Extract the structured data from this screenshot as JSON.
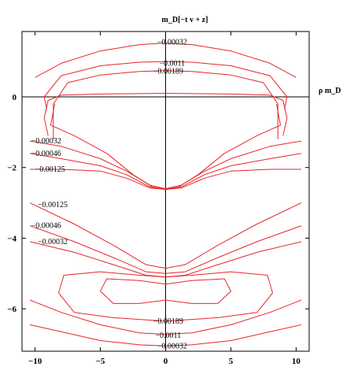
{
  "chart_data": {
    "type": "contour",
    "title": "m_D[−t v + z]",
    "xlabel": "ρ m_D",
    "ylabel": "",
    "xlim": [
      -11,
      11
    ],
    "ylim": [
      -7.2,
      1.85
    ],
    "x_ticks": [
      -10,
      -5,
      0,
      5,
      10
    ],
    "x_tick_labels": [
      "−10",
      "−5",
      "0",
      "5",
      "10"
    ],
    "y_ticks": [
      0,
      -2,
      -4,
      -6
    ],
    "y_tick_labels": [
      "0",
      "−2",
      "−4",
      "−6"
    ],
    "grid": false,
    "line_color": "#e8252a",
    "reference_lines": [
      {
        "axis": "y",
        "value": 0
      },
      {
        "axis": "x",
        "value": 0
      }
    ],
    "contour_labels": [
      {
        "text": "−0.00032",
        "x": 0.5,
        "y": 1.55
      },
      {
        "text": "−0.0011",
        "x": 0.5,
        "y": 0.95
      },
      {
        "text": "−0.00189",
        "x": 0.2,
        "y": 0.72
      },
      {
        "text": "−0.00032",
        "x": -10.3,
        "y": -1.25
      },
      {
        "text": "−0.00046",
        "x": -10.3,
        "y": -1.6
      },
      {
        "text": "−0.00125",
        "x": -10.0,
        "y": -2.05
      },
      {
        "text": "−0.00125",
        "x": -9.8,
        "y": -3.05
      },
      {
        "text": "−0.00046",
        "x": -10.3,
        "y": -3.65
      },
      {
        "text": "−0.00032",
        "x": -9.8,
        "y": -4.1
      },
      {
        "text": "−0.00189",
        "x": 0.2,
        "y": -6.35
      },
      {
        "text": "−0.0011",
        "x": 0.2,
        "y": -6.75
      },
      {
        "text": "−0.00032",
        "x": 0.5,
        "y": -7.05
      }
    ],
    "contours": [
      {
        "level": "−0.00032 (top)",
        "points": [
          [
            -10,
            0.55
          ],
          [
            -8,
            0.95
          ],
          [
            -5,
            1.3
          ],
          [
            -2,
            1.48
          ],
          [
            0,
            1.52
          ],
          [
            2,
            1.48
          ],
          [
            5,
            1.3
          ],
          [
            8,
            0.95
          ],
          [
            10,
            0.55
          ]
        ]
      },
      {
        "level": "−0.0011 (top)",
        "points": [
          [
            -9.1,
            -0.35
          ],
          [
            -9.3,
            0
          ],
          [
            -8,
            0.6
          ],
          [
            -5,
            0.88
          ],
          [
            -2,
            0.98
          ],
          [
            0,
            1.0
          ],
          [
            2,
            0.98
          ],
          [
            5,
            0.88
          ],
          [
            8,
            0.6
          ],
          [
            9.3,
            0
          ],
          [
            9.1,
            -0.35
          ]
        ]
      },
      {
        "level": "−0.00189 (upper loop)",
        "points": [
          [
            -8.6,
            -1.2
          ],
          [
            -8.6,
            -0.2
          ],
          [
            -7.5,
            0.4
          ],
          [
            -5,
            0.62
          ],
          [
            -2,
            0.72
          ],
          [
            0,
            0.74
          ],
          [
            2,
            0.72
          ],
          [
            5,
            0.62
          ],
          [
            7.5,
            0.4
          ],
          [
            8.6,
            -0.2
          ],
          [
            8.6,
            -1.2
          ]
        ]
      },
      {
        "level": "upper region inner loop",
        "points": [
          [
            -9,
            -1.1
          ],
          [
            -9.3,
            -0.6
          ],
          [
            -9,
            -0.1
          ],
          [
            -8,
            0.05
          ],
          [
            -5,
            0.08
          ],
          [
            0,
            0.1
          ],
          [
            5,
            0.08
          ],
          [
            8,
            0.05
          ],
          [
            9,
            -0.1
          ],
          [
            9.3,
            -0.6
          ],
          [
            9,
            -1.1
          ]
        ]
      },
      {
        "level": "lobe",
        "points": [
          [
            -8.5,
            -0.2
          ],
          [
            -8.8,
            -0.8
          ],
          [
            -7,
            -1.1
          ],
          [
            -4.5,
            -1.6
          ],
          [
            -2.5,
            -2.2
          ],
          [
            -1,
            -2.55
          ],
          [
            0,
            -2.62
          ],
          [
            1,
            -2.55
          ],
          [
            2.5,
            -2.2
          ],
          [
            4.5,
            -1.6
          ],
          [
            7,
            -1.1
          ],
          [
            8.8,
            -0.8
          ],
          [
            8.5,
            -0.2
          ]
        ]
      },
      {
        "level": "−0.00032 (left lobe branch)",
        "points": [
          [
            -10.4,
            -1.25
          ],
          [
            -8,
            -1.4
          ],
          [
            -5,
            -1.75
          ],
          [
            -3,
            -2.1
          ],
          [
            -1.2,
            -2.5
          ],
          [
            0,
            -2.6
          ],
          [
            1.2,
            -2.5
          ],
          [
            3,
            -2.1
          ],
          [
            5,
            -1.75
          ],
          [
            8,
            -1.4
          ],
          [
            10.4,
            -1.25
          ]
        ]
      },
      {
        "level": "−0.00046 (lobe branch)",
        "points": [
          [
            -10.4,
            -1.6
          ],
          [
            -8,
            -1.75
          ],
          [
            -5,
            -1.95
          ],
          [
            -3,
            -2.2
          ],
          [
            -1.2,
            -2.55
          ],
          [
            0,
            -2.62
          ],
          [
            1.2,
            -2.55
          ],
          [
            3,
            -2.2
          ],
          [
            5,
            -1.95
          ],
          [
            8,
            -1.75
          ],
          [
            10.4,
            -1.6
          ]
        ]
      },
      {
        "level": "−0.00125 (lobe branch)",
        "points": [
          [
            -10.4,
            -2.05
          ],
          [
            -8,
            -2.05
          ],
          [
            -5,
            -2.1
          ],
          [
            -3,
            -2.3
          ],
          [
            -1.2,
            -2.58
          ],
          [
            0,
            -2.62
          ],
          [
            1.2,
            -2.58
          ],
          [
            3,
            -2.3
          ],
          [
            5,
            -2.1
          ],
          [
            8,
            -2.05
          ],
          [
            10.4,
            -2.05
          ]
        ]
      },
      {
        "level": "−0.00125 (lower)",
        "points": [
          [
            -10.4,
            -3.0
          ],
          [
            -7,
            -3.6
          ],
          [
            -4,
            -4.2
          ],
          [
            -1.5,
            -4.75
          ],
          [
            0,
            -4.85
          ],
          [
            1.5,
            -4.75
          ],
          [
            4,
            -4.2
          ],
          [
            7,
            -3.6
          ],
          [
            10.4,
            -3.0
          ]
        ]
      },
      {
        "level": "−0.00046 (lower)",
        "points": [
          [
            -10.4,
            -3.65
          ],
          [
            -7,
            -4.1
          ],
          [
            -4,
            -4.55
          ],
          [
            -1.5,
            -4.95
          ],
          [
            0,
            -5.0
          ],
          [
            1.5,
            -4.95
          ],
          [
            4,
            -4.55
          ],
          [
            7,
            -4.1
          ],
          [
            10.4,
            -3.65
          ]
        ]
      },
      {
        "level": "−0.00032 (lower)",
        "points": [
          [
            -10.4,
            -4.1
          ],
          [
            -7,
            -4.4
          ],
          [
            -4,
            -4.75
          ],
          [
            -1.5,
            -5.05
          ],
          [
            0,
            -5.1
          ],
          [
            1.5,
            -5.05
          ],
          [
            4,
            -4.75
          ],
          [
            7,
            -4.4
          ],
          [
            10.4,
            -4.1
          ]
        ]
      },
      {
        "level": "−0.00189 (bottom loop)",
        "points": [
          [
            -8.2,
            -5.55
          ],
          [
            -7.8,
            -5.05
          ],
          [
            -5,
            -4.95
          ],
          [
            -2,
            -5.05
          ],
          [
            0,
            -5.1
          ],
          [
            2,
            -5.05
          ],
          [
            5,
            -4.95
          ],
          [
            7.8,
            -5.05
          ],
          [
            8.2,
            -5.55
          ],
          [
            7,
            -6.1
          ],
          [
            4,
            -6.25
          ],
          [
            0,
            -6.35
          ],
          [
            -4,
            -6.25
          ],
          [
            -7,
            -6.1
          ],
          [
            -8.2,
            -5.55
          ]
        ]
      },
      {
        "level": "inner bottom loop",
        "points": [
          [
            -5,
            -5.5
          ],
          [
            -4.5,
            -5.15
          ],
          [
            -2,
            -5.2
          ],
          [
            0,
            -5.3
          ],
          [
            2,
            -5.2
          ],
          [
            4.5,
            -5.15
          ],
          [
            5,
            -5.5
          ],
          [
            4,
            -5.85
          ],
          [
            2,
            -5.85
          ],
          [
            0,
            -5.75
          ],
          [
            -2,
            -5.85
          ],
          [
            -4,
            -5.85
          ],
          [
            -5,
            -5.5
          ]
        ]
      },
      {
        "level": "−0.0011 (bottom)",
        "points": [
          [
            -10.4,
            -5.75
          ],
          [
            -8,
            -6.1
          ],
          [
            -5,
            -6.45
          ],
          [
            -2,
            -6.68
          ],
          [
            0,
            -6.72
          ],
          [
            2,
            -6.68
          ],
          [
            5,
            -6.45
          ],
          [
            8,
            -6.1
          ],
          [
            10.4,
            -5.75
          ]
        ]
      },
      {
        "level": "−0.00032 (bottom)",
        "points": [
          [
            -10.4,
            -6.45
          ],
          [
            -8,
            -6.65
          ],
          [
            -5,
            -6.9
          ],
          [
            -2,
            -7.02
          ],
          [
            0,
            -7.05
          ],
          [
            2,
            -7.02
          ],
          [
            5,
            -6.9
          ],
          [
            8,
            -6.65
          ],
          [
            10.4,
            -6.45
          ]
        ]
      }
    ]
  }
}
